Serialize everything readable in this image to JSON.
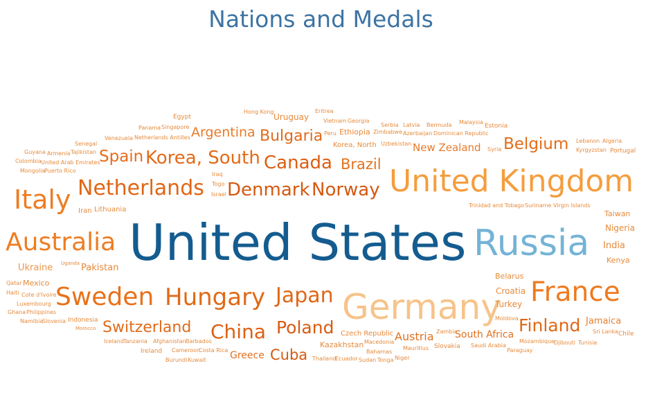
{
  "chart_data": {
    "type": "wordcloud",
    "title": "Nations and Medals",
    "words": [
      {
        "text": "United States",
        "size": 72,
        "color": "#145c8f"
      },
      {
        "text": "Russia",
        "size": 52,
        "color": "#74b3d6"
      },
      {
        "text": "Germany",
        "size": 50,
        "color": "#f7c389"
      },
      {
        "text": "United Kingdom",
        "size": 44,
        "color": "#f59d3d"
      },
      {
        "text": "France",
        "size": 39,
        "color": "#ee7a1f"
      },
      {
        "text": "Italy",
        "size": 38,
        "color": "#ee7d22"
      },
      {
        "text": "Australia",
        "size": 36,
        "color": "#ee7d22"
      },
      {
        "text": "Sweden",
        "size": 36,
        "color": "#e8711a"
      },
      {
        "text": "Hungary",
        "size": 34,
        "color": "#e06a16"
      },
      {
        "text": "Netherlands",
        "size": 30,
        "color": "#e06616"
      },
      {
        "text": "Japan",
        "size": 30,
        "color": "#e06616"
      },
      {
        "text": "Korea, South",
        "size": 26,
        "color": "#e46a18"
      },
      {
        "text": "China",
        "size": 28,
        "color": "#dd5f12"
      },
      {
        "text": "Canada",
        "size": 26,
        "color": "#dc5e12"
      },
      {
        "text": "Denmark",
        "size": 26,
        "color": "#d65810"
      },
      {
        "text": "Norway",
        "size": 26,
        "color": "#d65810"
      },
      {
        "text": "Poland",
        "size": 25,
        "color": "#d85a10"
      },
      {
        "text": "Finland",
        "size": 25,
        "color": "#e06814"
      },
      {
        "text": "Belgium",
        "size": 23,
        "color": "#e46d18"
      },
      {
        "text": "Spain",
        "size": 23,
        "color": "#e66c1c"
      },
      {
        "text": "Bulgaria",
        "size": 22,
        "color": "#e06a1a"
      },
      {
        "text": "Switzerland",
        "size": 22,
        "color": "#e06a1a"
      },
      {
        "text": "Brazil",
        "size": 21,
        "color": "#e2721c"
      },
      {
        "text": "Cuba",
        "size": 21,
        "color": "#d35a10"
      },
      {
        "text": "Argentina",
        "size": 19,
        "color": "#e97a28"
      },
      {
        "text": "Austria",
        "size": 16,
        "color": "#e07020"
      },
      {
        "text": "New Zealand",
        "size": 15,
        "color": "#e67a2c"
      },
      {
        "text": "South Africa",
        "size": 14,
        "color": "#e07020"
      },
      {
        "text": "Greece",
        "size": 14,
        "color": "#e07020"
      },
      {
        "text": "Pakistan",
        "size": 13,
        "color": "#e68838"
      },
      {
        "text": "Ukraine",
        "size": 13,
        "color": "#ec9548"
      },
      {
        "text": "Jamaica",
        "size": 13,
        "color": "#e48030"
      },
      {
        "text": "Uruguay",
        "size": 12,
        "color": "#e68a3a"
      },
      {
        "text": "Croatia",
        "size": 12,
        "color": "#e68a3a"
      },
      {
        "text": "Belarus",
        "size": 11,
        "color": "#e68a3a"
      },
      {
        "text": "Turkey",
        "size": 12,
        "color": "#e68a3a"
      },
      {
        "text": "India",
        "size": 13,
        "color": "#e68a3a"
      },
      {
        "text": "Nigeria",
        "size": 12,
        "color": "#e68a3a"
      },
      {
        "text": "Kenya",
        "size": 11,
        "color": "#e68a3a"
      },
      {
        "text": "Taiwan",
        "size": 11,
        "color": "#e68a3a"
      },
      {
        "text": "Mexico",
        "size": 11,
        "color": "#e68a3a"
      },
      {
        "text": "Ethiopia",
        "size": 11,
        "color": "#e68a3a"
      },
      {
        "text": "Korea, North",
        "size": 10,
        "color": "#e68a3a"
      },
      {
        "text": "Czech Republic",
        "size": 10,
        "color": "#e68a3a"
      },
      {
        "text": "Kazakhstan",
        "size": 11,
        "color": "#e68a3a"
      },
      {
        "text": "Lithuania",
        "size": 10,
        "color": "#e68a3a"
      },
      {
        "text": "Iran",
        "size": 10,
        "color": "#e68a3a"
      },
      {
        "text": "Estonia",
        "size": 9,
        "color": "#e68a3a"
      },
      {
        "text": "Indonesia",
        "size": 9,
        "color": "#e68a3a"
      },
      {
        "text": "Ireland",
        "size": 9,
        "color": "#e68a3a"
      },
      {
        "text": "Slovakia",
        "size": 9,
        "color": "#e68a3a"
      },
      {
        "text": "Portugal",
        "size": 9,
        "color": "#e68a3a"
      },
      {
        "text": "Chile",
        "size": 9,
        "color": "#e68a3a"
      },
      {
        "text": "Egypt",
        "size": 9,
        "color": "#e68a3a"
      },
      {
        "text": "Qatar",
        "size": 8,
        "color": "#e68a3a"
      },
      {
        "text": "Haiti",
        "size": 8,
        "color": "#e68a3a"
      },
      {
        "text": "Cote d'Ivoire",
        "size": 8,
        "color": "#e68a3a"
      },
      {
        "text": "Luxembourg",
        "size": 8,
        "color": "#e68a3a"
      },
      {
        "text": "Ghana",
        "size": 8,
        "color": "#e68a3a"
      },
      {
        "text": "Philippines",
        "size": 8,
        "color": "#e68a3a"
      },
      {
        "text": "Namibia",
        "size": 8,
        "color": "#e68a3a"
      },
      {
        "text": "Slovenia",
        "size": 8,
        "color": "#e68a3a"
      },
      {
        "text": "Morocco",
        "size": 7,
        "color": "#e68a3a"
      },
      {
        "text": "Uganda",
        "size": 7,
        "color": "#e68a3a"
      },
      {
        "text": "Iceland",
        "size": 8,
        "color": "#e68a3a"
      },
      {
        "text": "Tanzania",
        "size": 8,
        "color": "#e68a3a"
      },
      {
        "text": "Afghanistan",
        "size": 8,
        "color": "#e68a3a"
      },
      {
        "text": "Barbados",
        "size": 8,
        "color": "#e68a3a"
      },
      {
        "text": "Cameroon",
        "size": 8,
        "color": "#e68a3a"
      },
      {
        "text": "Costa Rica",
        "size": 8,
        "color": "#e68a3a"
      },
      {
        "text": "Burundi",
        "size": 8,
        "color": "#e68a3a"
      },
      {
        "text": "Kuwait",
        "size": 8,
        "color": "#e68a3a"
      },
      {
        "text": "Thailand",
        "size": 8,
        "color": "#e68a3a"
      },
      {
        "text": "Ecuador",
        "size": 8,
        "color": "#e68a3a"
      },
      {
        "text": "Sudan",
        "size": 8,
        "color": "#e68a3a"
      },
      {
        "text": "Tonga",
        "size": 8,
        "color": "#e68a3a"
      },
      {
        "text": "Niger",
        "size": 8,
        "color": "#e68a3a"
      },
      {
        "text": "Macedonia",
        "size": 8,
        "color": "#e68a3a"
      },
      {
        "text": "Bahamas",
        "size": 8,
        "color": "#e68a3a"
      },
      {
        "text": "Mauritius",
        "size": 8,
        "color": "#e68a3a"
      },
      {
        "text": "Zambia",
        "size": 8,
        "color": "#e68a3a"
      },
      {
        "text": "Saudi Arabia",
        "size": 8,
        "color": "#e68a3a"
      },
      {
        "text": "Mozambique",
        "size": 8,
        "color": "#e68a3a"
      },
      {
        "text": "Djibouti",
        "size": 8,
        "color": "#e68a3a"
      },
      {
        "text": "Tunisia",
        "size": 8,
        "color": "#e68a3a"
      },
      {
        "text": "Paraguay",
        "size": 8,
        "color": "#e68a3a"
      },
      {
        "text": "Sri Lanka",
        "size": 8,
        "color": "#e68a3a"
      },
      {
        "text": "Moldova",
        "size": 8,
        "color": "#e68a3a"
      },
      {
        "text": "Trinidad and Tobago",
        "size": 8,
        "color": "#e68a3a"
      },
      {
        "text": "Suriname",
        "size": 8,
        "color": "#e68a3a"
      },
      {
        "text": "Virgin Islands",
        "size": 8,
        "color": "#e68a3a"
      },
      {
        "text": "Lebanon",
        "size": 8,
        "color": "#e68a3a"
      },
      {
        "text": "Algeria",
        "size": 8,
        "color": "#e68a3a"
      },
      {
        "text": "Kyrgyzstan",
        "size": 8,
        "color": "#e68a3a"
      },
      {
        "text": "Syria",
        "size": 8,
        "color": "#e68a3a"
      },
      {
        "text": "Malaysia",
        "size": 8,
        "color": "#e68a3a"
      },
      {
        "text": "Bermuda",
        "size": 8,
        "color": "#e68a3a"
      },
      {
        "text": "Latvia",
        "size": 8,
        "color": "#e68a3a"
      },
      {
        "text": "Serbia",
        "size": 8,
        "color": "#e68a3a"
      },
      {
        "text": "Zimbabwe",
        "size": 8,
        "color": "#e68a3a"
      },
      {
        "text": "Azerbaijan",
        "size": 8,
        "color": "#e68a3a"
      },
      {
        "text": "Dominican Republic",
        "size": 8,
        "color": "#e68a3a"
      },
      {
        "text": "Uzbekistan",
        "size": 8,
        "color": "#e68a3a"
      },
      {
        "text": "Eritrea",
        "size": 8,
        "color": "#e68a3a"
      },
      {
        "text": "Vietnam",
        "size": 8,
        "color": "#e68a3a"
      },
      {
        "text": "Georgia",
        "size": 8,
        "color": "#e68a3a"
      },
      {
        "text": "Peru",
        "size": 8,
        "color": "#e68a3a"
      },
      {
        "text": "Hong Kong",
        "size": 8,
        "color": "#e68a3a"
      },
      {
        "text": "Panama",
        "size": 8,
        "color": "#e68a3a"
      },
      {
        "text": "Singapore",
        "size": 8,
        "color": "#e68a3a"
      },
      {
        "text": "Venezuela",
        "size": 8,
        "color": "#e68a3a"
      },
      {
        "text": "Netherlands Antilles",
        "size": 8,
        "color": "#e68a3a"
      },
      {
        "text": "Senegal",
        "size": 8,
        "color": "#e68a3a"
      },
      {
        "text": "Guyana",
        "size": 8,
        "color": "#e68a3a"
      },
      {
        "text": "Armenia",
        "size": 8,
        "color": "#e68a3a"
      },
      {
        "text": "Tajikistan",
        "size": 8,
        "color": "#e68a3a"
      },
      {
        "text": "Colombia",
        "size": 8,
        "color": "#e68a3a"
      },
      {
        "text": "United Arab Emirates",
        "size": 8,
        "color": "#e68a3a"
      },
      {
        "text": "Mongolia",
        "size": 8,
        "color": "#e68a3a"
      },
      {
        "text": "Puerto Rico",
        "size": 8,
        "color": "#e68a3a"
      },
      {
        "text": "Iraq",
        "size": 8,
        "color": "#e68a3a"
      },
      {
        "text": "Togo",
        "size": 8,
        "color": "#e68a3a"
      },
      {
        "text": "Israel",
        "size": 8,
        "color": "#e68a3a"
      }
    ]
  }
}
